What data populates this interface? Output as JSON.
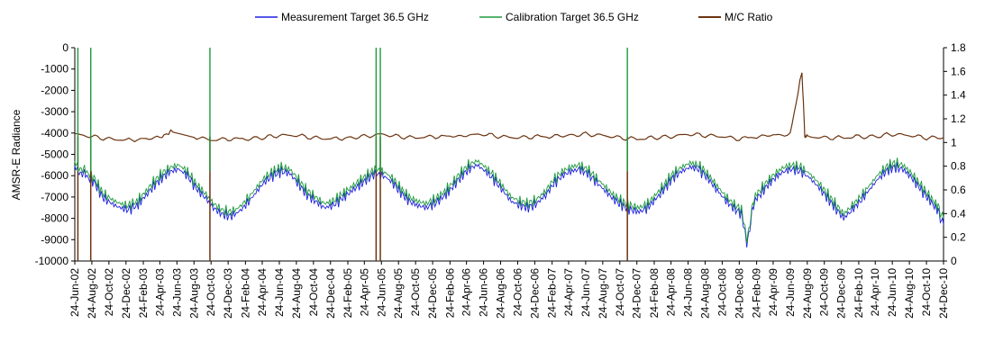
{
  "chart_data": {
    "type": "line",
    "title": "",
    "xlabel": "",
    "ylabel": "AMSR-E Radiance",
    "y2label": "",
    "ylim": [
      -10000,
      0
    ],
    "y2lim": [
      0,
      1.8
    ],
    "yticks": [
      "0",
      "-1000",
      "-2000",
      "-3000",
      "-4000",
      "-5000",
      "-6000",
      "-7000",
      "-8000",
      "-9000",
      "-10000"
    ],
    "y2ticks": [
      "1.8",
      "1.6",
      "1.4",
      "1.2",
      "1",
      "0.8",
      "0.6",
      "0.4",
      "0.2",
      "0"
    ],
    "xlim": [
      "2002-06-24",
      "2010-12-24"
    ],
    "xticks": [
      "24-Jun-02",
      "24-Aug-02",
      "24-Oct-02",
      "24-Dec-02",
      "24-Feb-03",
      "24-Apr-03",
      "24-Jun-03",
      "24-Aug-03",
      "24-Oct-03",
      "24-Dec-03",
      "24-Feb-04",
      "24-Apr-04",
      "24-Jun-04",
      "24-Aug-04",
      "24-Oct-04",
      "24-Dec-04",
      "24-Feb-05",
      "24-Apr-05",
      "24-Jun-05",
      "24-Aug-05",
      "24-Oct-05",
      "24-Dec-05",
      "24-Feb-06",
      "24-Apr-06",
      "24-Jun-06",
      "24-Aug-06",
      "24-Oct-06",
      "24-Dec-06",
      "24-Feb-07",
      "24-Apr-07",
      "24-Jun-07",
      "24-Aug-07",
      "24-Oct-07",
      "24-Dec-07",
      "24-Feb-08",
      "24-Apr-08",
      "24-Jun-08",
      "24-Aug-08",
      "24-Oct-08",
      "24-Dec-08",
      "24-Feb-09",
      "24-Apr-09",
      "24-Jun-09",
      "24-Aug-09",
      "24-Oct-09",
      "24-Dec-09",
      "24-Feb-10",
      "24-Apr-10",
      "24-Jun-10",
      "24-Aug-10",
      "24-Oct-10",
      "24-Dec-10"
    ],
    "grid": false,
    "legend_position": "top-center",
    "series": [
      {
        "name": "Measurement Target 36.5 GHz",
        "axis": "left",
        "color": "#1f1fe0",
        "x": [
          "2002-06-24",
          "2002-07-10",
          "2002-08-01",
          "2002-09-01",
          "2002-10-01",
          "2002-11-01",
          "2002-12-01",
          "2003-01-01",
          "2003-02-01",
          "2003-03-01",
          "2003-04-01",
          "2003-05-01",
          "2003-06-01",
          "2003-07-01",
          "2003-08-01",
          "2003-09-01",
          "2003-10-01",
          "2003-11-01",
          "2003-12-01",
          "2004-01-01",
          "2004-02-01",
          "2004-03-01",
          "2004-04-01",
          "2004-05-01",
          "2004-06-01",
          "2004-07-01",
          "2004-08-01",
          "2004-09-01",
          "2004-10-01",
          "2004-11-01",
          "2004-12-01",
          "2005-01-01",
          "2005-02-01",
          "2005-03-01",
          "2005-04-01",
          "2005-05-01",
          "2005-06-01",
          "2005-07-01",
          "2005-08-01",
          "2005-09-01",
          "2005-10-01",
          "2005-11-01",
          "2005-12-01",
          "2006-01-01",
          "2006-02-01",
          "2006-03-01",
          "2006-04-01",
          "2006-05-01",
          "2006-06-01",
          "2006-07-01",
          "2006-08-01",
          "2006-09-01",
          "2006-10-01",
          "2006-11-01",
          "2006-12-01",
          "2007-01-01",
          "2007-02-01",
          "2007-03-01",
          "2007-04-01",
          "2007-05-01",
          "2007-06-01",
          "2007-07-01",
          "2007-08-01",
          "2007-09-01",
          "2007-10-01",
          "2007-11-01",
          "2007-12-01",
          "2008-01-01",
          "2008-02-01",
          "2008-03-01",
          "2008-04-01",
          "2008-05-01",
          "2008-06-01",
          "2008-07-01",
          "2008-08-01",
          "2008-09-01",
          "2008-10-01",
          "2008-11-01",
          "2008-12-01",
          "2009-01-01",
          "2009-01-20",
          "2009-02-10",
          "2009-03-01",
          "2009-04-01",
          "2009-05-01",
          "2009-06-01",
          "2009-07-01",
          "2009-08-01",
          "2009-09-01",
          "2009-10-01",
          "2009-11-01",
          "2009-12-01",
          "2010-01-01",
          "2010-02-01",
          "2010-03-01",
          "2010-04-01",
          "2010-05-01",
          "2010-06-01",
          "2010-07-01",
          "2010-08-01",
          "2010-09-01",
          "2010-10-01",
          "2010-11-01",
          "2010-12-01",
          "2010-12-24"
        ],
        "values": [
          -5600,
          -5800,
          -6000,
          -6300,
          -7000,
          -7300,
          -7500,
          -7600,
          -7400,
          -7000,
          -6500,
          -6100,
          -5800,
          -5700,
          -6000,
          -6600,
          -7000,
          -7500,
          -7800,
          -7900,
          -7700,
          -7300,
          -6800,
          -6300,
          -6000,
          -5800,
          -5900,
          -6400,
          -6900,
          -7200,
          -7500,
          -7400,
          -7100,
          -6800,
          -6500,
          -6200,
          -5900,
          -6000,
          -6300,
          -6800,
          -7200,
          -7400,
          -7500,
          -7300,
          -7000,
          -6600,
          -6100,
          -5700,
          -5500,
          -5800,
          -6200,
          -6700,
          -7200,
          -7400,
          -7500,
          -7300,
          -6900,
          -6400,
          -6000,
          -5800,
          -5700,
          -5900,
          -6300,
          -6700,
          -7100,
          -7400,
          -7600,
          -7700,
          -7500,
          -7100,
          -6600,
          -6100,
          -5800,
          -5600,
          -5700,
          -6100,
          -6600,
          -7100,
          -7500,
          -7800,
          -9200,
          -7600,
          -7000,
          -6500,
          -6100,
          -5800,
          -5700,
          -5800,
          -6100,
          -6500,
          -7000,
          -7500,
          -8000,
          -7600,
          -7200,
          -6700,
          -6200,
          -5800,
          -5600,
          -5700,
          -6100,
          -6600,
          -7100,
          -7600,
          -8300
        ]
      },
      {
        "name": "Calibration Target 36.5 GHz",
        "axis": "left",
        "color": "#1e9a3c",
        "x": [
          "2002-06-24",
          "2002-07-10",
          "2002-08-01",
          "2002-09-01",
          "2002-10-01",
          "2002-11-01",
          "2002-12-01",
          "2003-01-01",
          "2003-02-01",
          "2003-03-01",
          "2003-04-01",
          "2003-05-01",
          "2003-06-01",
          "2003-07-01",
          "2003-08-01",
          "2003-09-01",
          "2003-10-01",
          "2003-11-01",
          "2003-12-01",
          "2004-01-01",
          "2004-02-01",
          "2004-03-01",
          "2004-04-01",
          "2004-05-01",
          "2004-06-01",
          "2004-07-01",
          "2004-08-01",
          "2004-09-01",
          "2004-10-01",
          "2004-11-01",
          "2004-12-01",
          "2005-01-01",
          "2005-02-01",
          "2005-03-01",
          "2005-04-01",
          "2005-05-01",
          "2005-06-01",
          "2005-07-01",
          "2005-08-01",
          "2005-09-01",
          "2005-10-01",
          "2005-11-01",
          "2005-12-01",
          "2006-01-01",
          "2006-02-01",
          "2006-03-01",
          "2006-04-01",
          "2006-05-01",
          "2006-06-01",
          "2006-07-01",
          "2006-08-01",
          "2006-09-01",
          "2006-10-01",
          "2006-11-01",
          "2006-12-01",
          "2007-01-01",
          "2007-02-01",
          "2007-03-01",
          "2007-04-01",
          "2007-05-01",
          "2007-06-01",
          "2007-07-01",
          "2007-08-01",
          "2007-09-01",
          "2007-10-01",
          "2007-11-01",
          "2007-12-01",
          "2008-01-01",
          "2008-02-01",
          "2008-03-01",
          "2008-04-01",
          "2008-05-01",
          "2008-06-01",
          "2008-07-01",
          "2008-08-01",
          "2008-09-01",
          "2008-10-01",
          "2008-11-01",
          "2008-12-01",
          "2009-01-01",
          "2009-01-20",
          "2009-02-10",
          "2009-03-01",
          "2009-04-01",
          "2009-05-01",
          "2009-06-01",
          "2009-07-01",
          "2009-08-01",
          "2009-09-01",
          "2009-10-01",
          "2009-11-01",
          "2009-12-01",
          "2010-01-01",
          "2010-02-01",
          "2010-03-01",
          "2010-04-01",
          "2010-05-01",
          "2010-06-01",
          "2010-07-01",
          "2010-08-01",
          "2010-09-01",
          "2010-10-01",
          "2010-11-01",
          "2010-12-01",
          "2010-12-24"
        ],
        "values": [
          -5400,
          -5600,
          -5800,
          -6100,
          -6800,
          -7100,
          -7300,
          -7400,
          -7200,
          -6800,
          -6300,
          -5900,
          -5600,
          -5500,
          -5800,
          -6400,
          -6800,
          -7300,
          -7600,
          -7700,
          -7500,
          -7100,
          -6600,
          -6100,
          -5800,
          -5600,
          -5700,
          -6200,
          -6700,
          -7000,
          -7300,
          -7200,
          -6900,
          -6600,
          -6300,
          -6000,
          -5700,
          -5800,
          -6100,
          -6600,
          -7000,
          -7200,
          -7300,
          -7100,
          -6800,
          -6400,
          -5900,
          -5500,
          -5300,
          -5600,
          -6000,
          -6500,
          -7000,
          -7200,
          -7300,
          -7100,
          -6700,
          -6200,
          -5800,
          -5600,
          -5500,
          -5700,
          -6100,
          -6500,
          -6900,
          -7200,
          -7400,
          -7500,
          -7300,
          -6900,
          -6400,
          -5900,
          -5600,
          -5400,
          -5500,
          -5900,
          -6400,
          -6900,
          -7300,
          -7600,
          -9000,
          -7400,
          -6800,
          -6300,
          -5900,
          -5600,
          -5500,
          -5600,
          -5900,
          -6300,
          -6800,
          -7300,
          -7800,
          -7400,
          -7000,
          -6500,
          -6000,
          -5600,
          -5400,
          -5500,
          -5900,
          -6400,
          -6900,
          -7400,
          -8000
        ]
      },
      {
        "name": "M/C Ratio",
        "axis": "right",
        "color": "#6b3410",
        "x": [
          "2002-06-24",
          "2002-08-24",
          "2002-10-24",
          "2002-12-24",
          "2003-02-24",
          "2003-04-24",
          "2003-06-10",
          "2003-08-24",
          "2003-10-24",
          "2003-12-24",
          "2004-02-24",
          "2004-04-24",
          "2004-06-24",
          "2004-08-24",
          "2004-10-24",
          "2004-12-24",
          "2005-02-24",
          "2005-04-24",
          "2005-06-24",
          "2005-08-24",
          "2005-10-24",
          "2005-12-24",
          "2006-02-24",
          "2006-04-24",
          "2006-06-24",
          "2006-08-24",
          "2006-10-24",
          "2006-12-24",
          "2007-02-24",
          "2007-04-24",
          "2007-06-24",
          "2007-08-24",
          "2007-10-24",
          "2007-12-24",
          "2008-02-24",
          "2008-04-24",
          "2008-06-24",
          "2008-08-24",
          "2008-10-24",
          "2008-12-24",
          "2009-02-24",
          "2009-04-24",
          "2009-06-24",
          "2009-08-05",
          "2009-08-15",
          "2009-08-24",
          "2009-10-24",
          "2009-12-24",
          "2010-02-24",
          "2010-04-24",
          "2010-06-24",
          "2010-08-24",
          "2010-10-24",
          "2010-12-24"
        ],
        "values": [
          1.07,
          1.05,
          1.03,
          1.02,
          1.03,
          1.04,
          1.1,
          1.05,
          1.02,
          1.03,
          1.03,
          1.04,
          1.06,
          1.06,
          1.04,
          1.03,
          1.04,
          1.05,
          1.07,
          1.05,
          1.04,
          1.05,
          1.05,
          1.06,
          1.07,
          1.05,
          1.04,
          1.05,
          1.05,
          1.06,
          1.07,
          1.06,
          1.04,
          1.03,
          1.04,
          1.05,
          1.07,
          1.06,
          1.05,
          1.03,
          1.05,
          1.06,
          1.07,
          1.6,
          1.06,
          1.05,
          1.04,
          1.04,
          1.05,
          1.05,
          1.07,
          1.06,
          1.04,
          1.04
        ],
        "dropouts_to_zero": [
          "2002-07-05",
          "2002-08-20",
          "2003-10-20",
          "2005-06-05",
          "2005-06-20",
          "2007-11-20"
        ]
      }
    ],
    "vertical_spikes": [
      {
        "date": "2002-07-05",
        "color": "#1e9a3c"
      },
      {
        "date": "2002-08-20",
        "color": "#1e9a3c"
      },
      {
        "date": "2003-10-20",
        "color": "#1e9a3c"
      },
      {
        "date": "2005-06-05",
        "color": "#1e9a3c"
      },
      {
        "date": "2005-06-20",
        "color": "#1e9a3c"
      },
      {
        "date": "2007-11-20",
        "color": "#1e9a3c"
      }
    ]
  }
}
